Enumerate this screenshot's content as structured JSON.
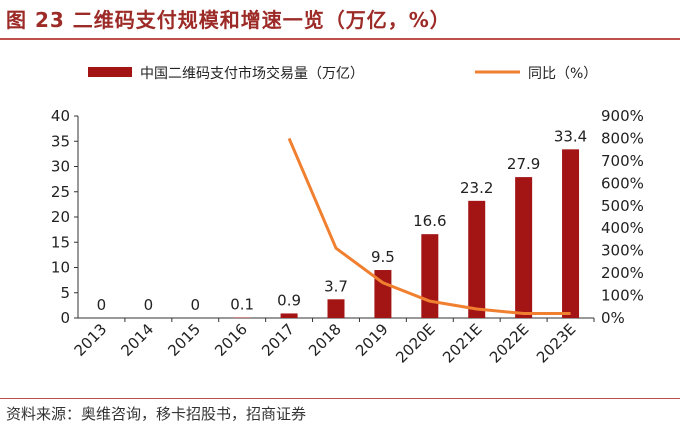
{
  "figure_title": "图 23  二维码支付规模和增速一览（万亿，%）",
  "source_note": "资料来源：奥维咨询，移卡招股书，招商证券",
  "colors": {
    "bar": "#A31515",
    "line": "#F08030",
    "title": "#9C2A26",
    "rule": "#C0504D"
  },
  "chart_data": {
    "type": "bar",
    "title": "",
    "categories": [
      "2013",
      "2014",
      "2015",
      "2016",
      "2017",
      "2018",
      "2019",
      "2020E",
      "2021E",
      "2022E",
      "2023E"
    ],
    "series": [
      {
        "name": "中国二维码支付市场交易量（万亿）",
        "type": "bar",
        "axis": "left",
        "values": [
          0,
          0,
          0,
          0.1,
          0.9,
          3.7,
          9.5,
          16.6,
          23.2,
          27.9,
          33.4
        ],
        "labels": [
          "0",
          "0",
          "0",
          "0.1",
          "0.9",
          "3.7",
          "9.5",
          "16.6",
          "23.2",
          "27.9",
          "33.4"
        ]
      },
      {
        "name": "同比（%）",
        "type": "line",
        "axis": "right",
        "values": [
          null,
          null,
          null,
          null,
          800,
          311,
          157,
          75,
          40,
          20,
          20
        ]
      }
    ],
    "y_left": {
      "min": 0,
      "max": 40,
      "step": 5,
      "ticks": [
        "0",
        "5",
        "10",
        "15",
        "20",
        "25",
        "30",
        "35",
        "40"
      ]
    },
    "y_right": {
      "min": 0,
      "max": 900,
      "step": 100,
      "ticks": [
        "0%",
        "100%",
        "200%",
        "300%",
        "400%",
        "500%",
        "600%",
        "700%",
        "800%",
        "900%"
      ]
    },
    "grid": false,
    "legend_position": "top"
  }
}
